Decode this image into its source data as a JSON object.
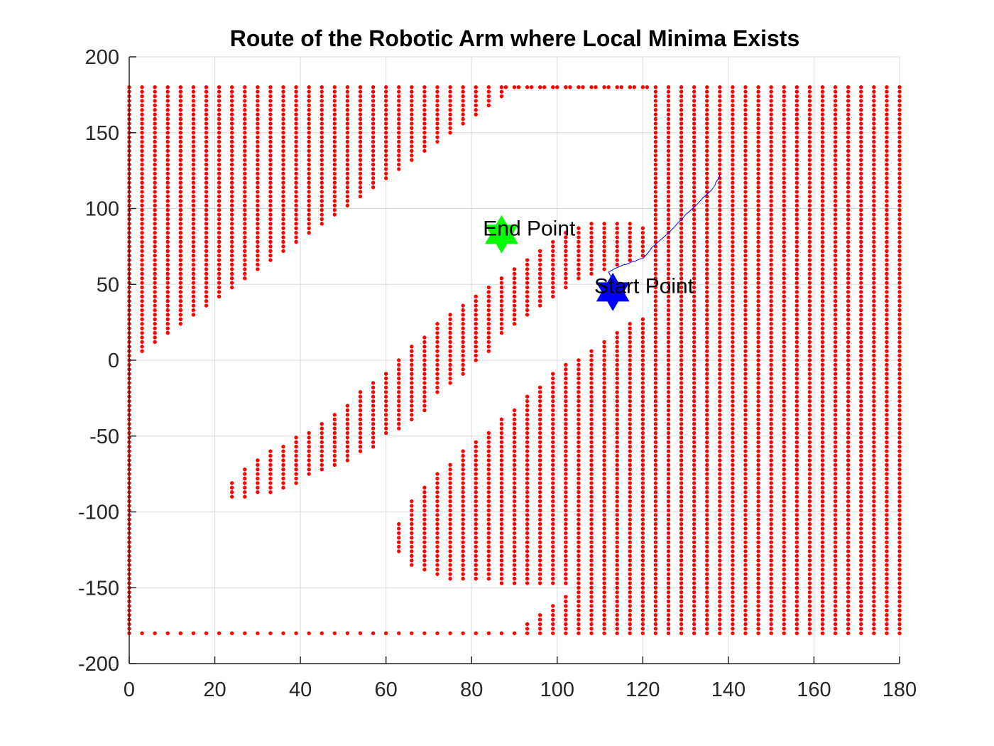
{
  "chart_data": {
    "type": "scatter",
    "title": "Route of the Robotic Arm where Local Minima Exists",
    "xlabel": "",
    "ylabel": "",
    "xlim": [
      0,
      180
    ],
    "ylim": [
      -200,
      200
    ],
    "xticks": [
      "0",
      "20",
      "40",
      "60",
      "80",
      "100",
      "120",
      "140",
      "160",
      "180"
    ],
    "yticks": [
      "200",
      "150",
      "100",
      "50",
      "0",
      "-50",
      "-100",
      "-150",
      "-200"
    ],
    "grid": true,
    "legend": "none",
    "colors": {
      "obstacle": "#ff0000",
      "route": "#0000ff",
      "end_marker": "#00ff00",
      "start_marker": "#0000ff"
    },
    "obstacle_points": {
      "marker": "dot",
      "color": "#ff0000",
      "y_step": 3,
      "columns": [
        {
          "x": 0,
          "ranges": [
            [
              -180,
              180
            ]
          ]
        },
        {
          "x": 3,
          "ranges": [
            [
              6,
              180
            ]
          ]
        },
        {
          "x": 6,
          "ranges": [
            [
              12,
              180
            ]
          ]
        },
        {
          "x": 9,
          "ranges": [
            [
              18,
              180
            ]
          ]
        },
        {
          "x": 12,
          "ranges": [
            [
              24,
              180
            ]
          ]
        },
        {
          "x": 15,
          "ranges": [
            [
              30,
              180
            ]
          ]
        },
        {
          "x": 18,
          "ranges": [
            [
              36,
              180
            ]
          ]
        },
        {
          "x": 21,
          "ranges": [
            [
              42,
              180
            ]
          ]
        },
        {
          "x": 24,
          "ranges": [
            [
              48,
              180
            ],
            [
              -90,
              -81
            ]
          ]
        },
        {
          "x": 27,
          "ranges": [
            [
              54,
              180
            ],
            [
              -90,
              -72
            ]
          ]
        },
        {
          "x": 30,
          "ranges": [
            [
              60,
              180
            ],
            [
              -87,
              -66
            ]
          ]
        },
        {
          "x": 33,
          "ranges": [
            [
              66,
              180
            ],
            [
              -87,
              -60
            ]
          ]
        },
        {
          "x": 36,
          "ranges": [
            [
              72,
              180
            ],
            [
              -84,
              -57
            ]
          ]
        },
        {
          "x": 39,
          "ranges": [
            [
              78,
              180
            ],
            [
              -81,
              -51
            ]
          ]
        },
        {
          "x": 42,
          "ranges": [
            [
              84,
              180
            ],
            [
              -75,
              -48
            ]
          ]
        },
        {
          "x": 45,
          "ranges": [
            [
              90,
              180
            ],
            [
              -72,
              -42
            ]
          ]
        },
        {
          "x": 48,
          "ranges": [
            [
              96,
              180
            ],
            [
              -69,
              -36
            ]
          ]
        },
        {
          "x": 51,
          "ranges": [
            [
              102,
              180
            ],
            [
              -66,
              -30
            ]
          ]
        },
        {
          "x": 54,
          "ranges": [
            [
              108,
              180
            ],
            [
              -60,
              -21
            ]
          ]
        },
        {
          "x": 57,
          "ranges": [
            [
              114,
              180
            ],
            [
              -57,
              -15
            ]
          ]
        },
        {
          "x": 60,
          "ranges": [
            [
              120,
              180
            ],
            [
              -48,
              -9
            ]
          ]
        },
        {
          "x": 63,
          "ranges": [
            [
              126,
              180
            ],
            [
              -45,
              0
            ],
            [
              -126,
              -108
            ]
          ]
        },
        {
          "x": 66,
          "ranges": [
            [
              132,
              180
            ],
            [
              -39,
              9
            ],
            [
              -135,
              -93
            ]
          ]
        },
        {
          "x": 69,
          "ranges": [
            [
              138,
              180
            ],
            [
              -33,
              15
            ],
            [
              -138,
              -84
            ]
          ]
        },
        {
          "x": 72,
          "ranges": [
            [
              144,
              180
            ],
            [
              -21,
              24
            ],
            [
              -141,
              -75
            ]
          ]
        },
        {
          "x": 75,
          "ranges": [
            [
              150,
              180
            ],
            [
              -15,
              30
            ],
            [
              -144,
              -69
            ]
          ]
        },
        {
          "x": 78,
          "ranges": [
            [
              156,
              180
            ],
            [
              -9,
              36
            ],
            [
              -144,
              -60
            ]
          ]
        },
        {
          "x": 81,
          "ranges": [
            [
              162,
              180
            ],
            [
              0,
              42
            ],
            [
              -144,
              -54
            ]
          ]
        },
        {
          "x": 84,
          "ranges": [
            [
              168,
              180
            ],
            [
              6,
              48
            ],
            [
              -144,
              -48
            ]
          ]
        },
        {
          "x": 87,
          "ranges": [
            [
              174,
              180
            ],
            [
              18,
              54
            ],
            [
              -147,
              -39
            ]
          ]
        },
        {
          "x": 90,
          "ranges": [
            [
              180,
              180
            ],
            [
              24,
              60
            ],
            [
              -147,
              -33
            ]
          ]
        },
        {
          "x": 93,
          "ranges": [
            [
              180,
              180
            ],
            [
              30,
              66
            ],
            [
              -147,
              -24
            ],
            [
              -180,
              -174
            ]
          ]
        },
        {
          "x": 96,
          "ranges": [
            [
              180,
              180
            ],
            [
              36,
              72
            ],
            [
              -147,
              -18
            ],
            [
              -180,
              -168
            ]
          ]
        },
        {
          "x": 99,
          "ranges": [
            [
              180,
              180
            ],
            [
              42,
              78
            ],
            [
              -147,
              -9
            ],
            [
              -180,
              -162
            ]
          ]
        },
        {
          "x": 102,
          "ranges": [
            [
              180,
              180
            ],
            [
              48,
              84
            ],
            [
              -180,
              -156
            ],
            [
              -147,
              -3
            ]
          ]
        },
        {
          "x": 105,
          "ranges": [
            [
              180,
              180
            ],
            [
              54,
              87
            ],
            [
              -180,
              0
            ]
          ]
        },
        {
          "x": 108,
          "ranges": [
            [
              180,
              180
            ],
            [
              57,
              90
            ],
            [
              -180,
              6
            ]
          ]
        },
        {
          "x": 111,
          "ranges": [
            [
              180,
              180
            ],
            [
              60,
              90
            ],
            [
              -180,
              12
            ]
          ]
        },
        {
          "x": 114,
          "ranges": [
            [
              180,
              180
            ],
            [
              63,
              90
            ],
            [
              -180,
              18
            ]
          ]
        },
        {
          "x": 117,
          "ranges": [
            [
              180,
              180
            ],
            [
              66,
              90
            ],
            [
              -180,
              24
            ]
          ]
        },
        {
          "x": 120,
          "ranges": [
            [
              180,
              180
            ],
            [
              69,
              87
            ],
            [
              -180,
              27
            ]
          ]
        },
        {
          "x": 123,
          "ranges": [
            [
              -180,
              180
            ]
          ]
        },
        {
          "x": 126,
          "ranges": [
            [
              -180,
              180
            ]
          ]
        },
        {
          "x": 129,
          "ranges": [
            [
              -180,
              180
            ]
          ]
        },
        {
          "x": 132,
          "ranges": [
            [
              -180,
              180
            ]
          ]
        },
        {
          "x": 135,
          "ranges": [
            [
              -180,
              180
            ]
          ]
        },
        {
          "x": 138,
          "ranges": [
            [
              -180,
              180
            ]
          ]
        },
        {
          "x": 141,
          "ranges": [
            [
              -180,
              180
            ]
          ]
        },
        {
          "x": 144,
          "ranges": [
            [
              -180,
              180
            ]
          ]
        },
        {
          "x": 147,
          "ranges": [
            [
              -180,
              180
            ]
          ]
        },
        {
          "x": 150,
          "ranges": [
            [
              -180,
              180
            ]
          ]
        },
        {
          "x": 153,
          "ranges": [
            [
              -180,
              180
            ]
          ]
        },
        {
          "x": 156,
          "ranges": [
            [
              -180,
              180
            ]
          ]
        },
        {
          "x": 159,
          "ranges": [
            [
              -180,
              180
            ]
          ]
        },
        {
          "x": 162,
          "ranges": [
            [
              -180,
              180
            ]
          ]
        },
        {
          "x": 165,
          "ranges": [
            [
              -180,
              180
            ]
          ]
        },
        {
          "x": 168,
          "ranges": [
            [
              -180,
              180
            ]
          ]
        },
        {
          "x": 171,
          "ranges": [
            [
              -180,
              180
            ]
          ]
        },
        {
          "x": 174,
          "ranges": [
            [
              -180,
              180
            ]
          ]
        },
        {
          "x": 177,
          "ranges": [
            [
              -180,
              180
            ]
          ]
        },
        {
          "x": 180,
          "ranges": [
            [
              -180,
              180
            ]
          ]
        }
      ]
    },
    "route": {
      "color": "#0000ff",
      "points": [
        [
          113,
          45
        ],
        [
          112,
          58
        ],
        [
          114,
          61
        ],
        [
          116,
          63
        ],
        [
          118,
          65
        ],
        [
          120,
          67
        ],
        [
          122,
          74
        ],
        [
          124,
          79
        ],
        [
          126,
          84
        ],
        [
          128,
          90
        ],
        [
          130,
          96
        ],
        [
          132,
          101
        ],
        [
          134,
          107
        ],
        [
          136,
          112
        ],
        [
          137,
          117
        ],
        [
          138,
          123
        ]
      ]
    },
    "markers": [
      {
        "name": "End Point",
        "shape": "hexagram",
        "x": 87,
        "y": 83,
        "color": "#00ff00"
      },
      {
        "name": "Start Point",
        "shape": "hexagram",
        "x": 113,
        "y": 45,
        "color": "#0000ff"
      }
    ],
    "annotations": [
      {
        "text": "End Point",
        "x": 82,
        "y": 87
      },
      {
        "text": "Start Point",
        "x": 108,
        "y": 49
      }
    ]
  }
}
